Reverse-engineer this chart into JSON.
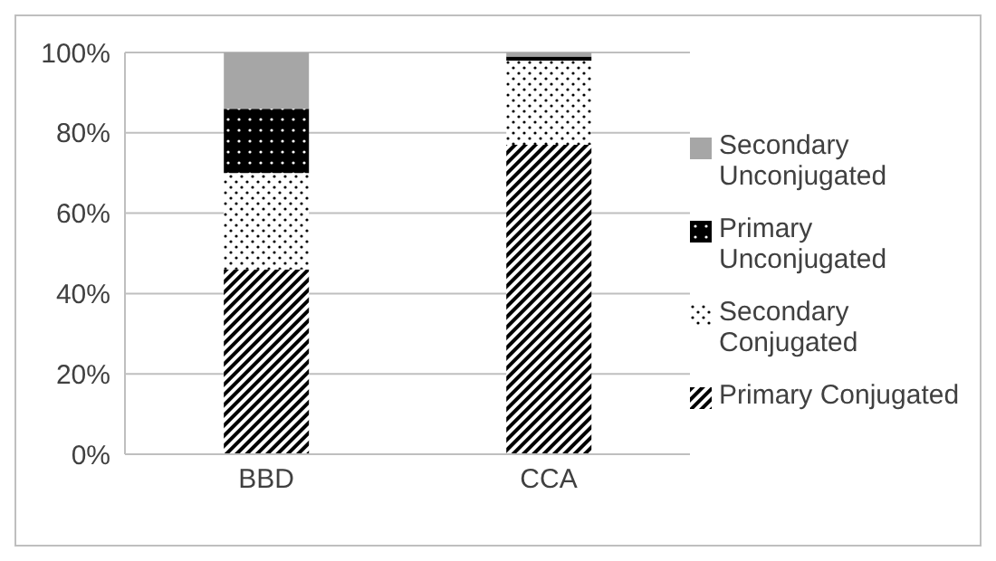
{
  "chart_data": {
    "type": "bar",
    "stacked": true,
    "categories": [
      "BBD",
      "CCA"
    ],
    "series": [
      {
        "name": "Primary Conjugated",
        "color": "#000000",
        "values": [
          46,
          77
        ]
      },
      {
        "name": "Secondary Conjugated",
        "color": "#000000",
        "values": [
          24,
          21
        ]
      },
      {
        "name": "Primary Unconjugated",
        "color": "#000000",
        "values": [
          16,
          1
        ]
      },
      {
        "name": "Secondary Unconjugated",
        "color": "#a6a6a6",
        "values": [
          14,
          1
        ]
      }
    ],
    "ylim": [
      0,
      100
    ],
    "yticks": [
      {
        "value": 0,
        "label": "0%"
      },
      {
        "value": 20,
        "label": "20%"
      },
      {
        "value": 40,
        "label": "40%"
      },
      {
        "value": 60,
        "label": "60%"
      },
      {
        "value": 80,
        "label": "80%"
      },
      {
        "value": 100,
        "label": "100%"
      }
    ],
    "grid": "y",
    "legend": "right"
  }
}
